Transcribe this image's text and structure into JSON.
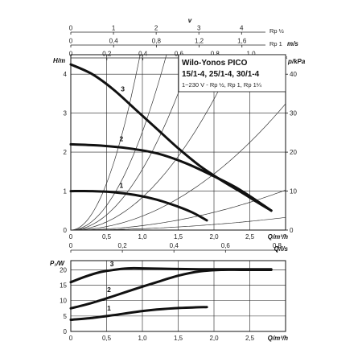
{
  "chart_data": [
    {
      "type": "line",
      "title": "Wilo-Yonos PICO",
      "subtitle": "15/1-4, 25/1-4, 30/1-4",
      "note": "1~230 V - Rp ½, Rp 1, Rp 1¼",
      "xlabel": "Q/m³/h",
      "ylabel": "H/m",
      "y2label": "p/kPa",
      "xlim": [
        0,
        3.0
      ],
      "ylim": [
        0,
        4.5
      ],
      "y2lim": [
        0,
        45
      ],
      "x_ticks": [
        "0",
        "0,5",
        "1,0",
        "1,5",
        "2,0",
        "2,5"
      ],
      "y_ticks": [
        "0",
        "1",
        "2",
        "3",
        "4"
      ],
      "y2_ticks": [
        "0",
        "10",
        "20",
        "30",
        "40"
      ],
      "x2_label": "Q/l/s",
      "x2_ticks": [
        "0",
        "0,2",
        "0,4",
        "0,6",
        "0,8"
      ],
      "velocity_scales": [
        {
          "label": "v",
          "unit": "",
          "name": "Rp ½",
          "ticks": [
            "0",
            "1",
            "2",
            "3",
            "4"
          ]
        },
        {
          "label": "",
          "unit": "m/s",
          "name": "Rp 1",
          "ticks": [
            "0",
            "0,4",
            "0,8",
            "1,2",
            "1,6"
          ]
        },
        {
          "label": "",
          "unit": "",
          "name": "Rp 1¼",
          "ticks": [
            "0",
            "0,2",
            "0,4",
            "0,6",
            "0,8",
            "1,0"
          ]
        }
      ],
      "grid": true,
      "series": [
        {
          "name": "1",
          "x": [
            0,
            0.3,
            0.6,
            0.9,
            1.2,
            1.5,
            1.7,
            1.9
          ],
          "y": [
            1.0,
            1.0,
            0.97,
            0.9,
            0.78,
            0.6,
            0.45,
            0.25
          ]
        },
        {
          "name": "2",
          "x": [
            0,
            0.4,
            0.8,
            1.2,
            1.6,
            2.0,
            2.3,
            2.6,
            2.8
          ],
          "y": [
            2.2,
            2.17,
            2.1,
            1.97,
            1.72,
            1.38,
            1.1,
            0.75,
            0.5
          ]
        },
        {
          "name": "3",
          "x": [
            0,
            0.3,
            0.6,
            0.9,
            1.2,
            1.5,
            1.8,
            2.1,
            2.4,
            2.6,
            2.8
          ],
          "y": [
            4.25,
            4.0,
            3.6,
            3.1,
            2.6,
            2.1,
            1.65,
            1.28,
            0.95,
            0.72,
            0.5
          ]
        }
      ],
      "system_curves": [
        0.3,
        0.95,
        3.0,
        7.0,
        13.0,
        21.0,
        40.0
      ],
      "series_labels": [
        {
          "name": "1",
          "x": 0.68,
          "y": 1.02
        },
        {
          "name": "2",
          "x": 0.68,
          "y": 2.22
        },
        {
          "name": "3",
          "x": 0.7,
          "y": 3.5
        }
      ]
    },
    {
      "type": "line",
      "title": "",
      "xlabel": "Q/m³/h",
      "ylabel": "P₁/W",
      "xlim": [
        0,
        3.0
      ],
      "ylim": [
        0,
        23
      ],
      "x_ticks": [
        "0",
        "0,5",
        "1,0",
        "1,5",
        "2,0",
        "2,5"
      ],
      "y_ticks": [
        "0",
        "5",
        "10",
        "15",
        "20"
      ],
      "grid": true,
      "series": [
        {
          "name": "1",
          "x": [
            0,
            0.3,
            0.6,
            0.9,
            1.2,
            1.5,
            1.7,
            1.9
          ],
          "y": [
            3.8,
            4.4,
            5.3,
            6.3,
            7.1,
            7.6,
            7.8,
            7.9
          ]
        },
        {
          "name": "2",
          "x": [
            0,
            0.3,
            0.6,
            0.9,
            1.2,
            1.5,
            1.8,
            2.1,
            2.4,
            2.8
          ],
          "y": [
            7.5,
            9.3,
            11.5,
            13.8,
            16.0,
            18.1,
            19.5,
            20.0,
            20.0,
            20.0
          ]
        },
        {
          "name": "3",
          "x": [
            0,
            0.2,
            0.4,
            0.6,
            0.8,
            1.0,
            1.4,
            1.8,
            2.2,
            2.6,
            2.8
          ],
          "y": [
            16.0,
            17.8,
            19.2,
            20.0,
            20.5,
            20.5,
            20.3,
            20.2,
            20.2,
            20.2,
            20.2
          ]
        }
      ],
      "series_labels": [
        {
          "name": "1",
          "x": 0.62,
          "y": 6.8
        },
        {
          "name": "2",
          "x": 0.62,
          "y": 12.8
        },
        {
          "name": "3",
          "x": 0.66,
          "y": 21.2
        }
      ]
    }
  ]
}
